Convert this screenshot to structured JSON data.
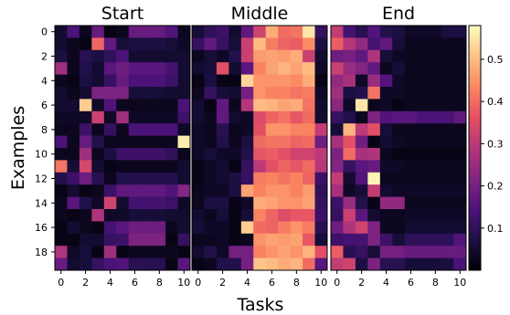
{
  "chart_data": {
    "type": "heatmap",
    "xlabel": "Tasks",
    "ylabel": "Examples",
    "colormap": "magma",
    "vmin": 0.0,
    "vmax": 0.58,
    "x_ticks": [
      0,
      2,
      4,
      6,
      8,
      10
    ],
    "y_ticks": [
      0,
      2,
      4,
      6,
      8,
      10,
      12,
      14,
      16,
      18
    ],
    "colorbar_ticks": [
      0.1,
      0.2,
      0.3,
      0.4,
      0.5
    ],
    "panels": [
      {
        "title": "Start",
        "values": [
          [
            0.05,
            0.14,
            0.03,
            0.18,
            0.02,
            0.03,
            0.18,
            0.18,
            0.18,
            0.15,
            0.03
          ],
          [
            0.05,
            0.03,
            0.02,
            0.39,
            0.17,
            0.06,
            0.07,
            0.07,
            0.07,
            0.06,
            0.04
          ],
          [
            0.07,
            0.03,
            0.09,
            0.07,
            0.1,
            0.14,
            0.05,
            0.05,
            0.05,
            0.05,
            0.05
          ],
          [
            0.26,
            0.03,
            0.08,
            0.05,
            0.16,
            0.19,
            0.16,
            0.16,
            0.16,
            0.13,
            0.05
          ],
          [
            0.03,
            0.02,
            0.07,
            0.05,
            0.11,
            0.18,
            0.14,
            0.14,
            0.14,
            0.12,
            0.05
          ],
          [
            0.05,
            0.03,
            0.05,
            0.21,
            0.21,
            0.21,
            0.06,
            0.06,
            0.06,
            0.05,
            0.05
          ],
          [
            0.05,
            0.05,
            0.52,
            0.04,
            0.15,
            0.03,
            0.03,
            0.03,
            0.03,
            0.03,
            0.14
          ],
          [
            0.04,
            0.04,
            0.04,
            0.32,
            0.04,
            0.26,
            0.04,
            0.04,
            0.04,
            0.04,
            0.12
          ],
          [
            0.03,
            0.03,
            0.12,
            0.03,
            0.11,
            0.03,
            0.14,
            0.14,
            0.14,
            0.14,
            0.04
          ],
          [
            0.14,
            0.03,
            0.18,
            0.08,
            0.03,
            0.03,
            0.03,
            0.03,
            0.03,
            0.03,
            0.56
          ],
          [
            0.03,
            0.03,
            0.26,
            0.03,
            0.07,
            0.12,
            0.12,
            0.12,
            0.12,
            0.1,
            0.03
          ],
          [
            0.41,
            0.06,
            0.34,
            0.05,
            0.02,
            0.03,
            0.03,
            0.03,
            0.03,
            0.03,
            0.05
          ],
          [
            0.08,
            0.12,
            0.19,
            0.09,
            0.03,
            0.08,
            0.08,
            0.08,
            0.08,
            0.08,
            0.05
          ],
          [
            0.02,
            0.05,
            0.02,
            0.03,
            0.12,
            0.17,
            0.17,
            0.17,
            0.17,
            0.15,
            0.22
          ],
          [
            0.03,
            0.16,
            0.08,
            0.04,
            0.33,
            0.05,
            0.13,
            0.13,
            0.13,
            0.12,
            0.04
          ],
          [
            0.03,
            0.02,
            0.03,
            0.28,
            0.04,
            0.04,
            0.06,
            0.06,
            0.06,
            0.05,
            0.05
          ],
          [
            0.02,
            0.05,
            0.03,
            0.02,
            0.13,
            0.16,
            0.19,
            0.19,
            0.19,
            0.03,
            0.05
          ],
          [
            0.02,
            0.02,
            0.05,
            0.05,
            0.11,
            0.12,
            0.21,
            0.21,
            0.21,
            0.02,
            0.11
          ],
          [
            0.28,
            0.04,
            0.06,
            0.02,
            0.26,
            0.02,
            0.03,
            0.03,
            0.03,
            0.03,
            0.02
          ],
          [
            0.18,
            0.05,
            0.06,
            0.11,
            0.14,
            0.15,
            0.09,
            0.09,
            0.09,
            0.02,
            0.16
          ]
        ]
      },
      {
        "title": "Middle",
        "values": [
          [
            0.06,
            0.1,
            0.12,
            0.05,
            0.17,
            0.33,
            0.48,
            0.4,
            0.41,
            0.55,
            0.11
          ],
          [
            0.11,
            0.17,
            0.11,
            0.06,
            0.32,
            0.5,
            0.42,
            0.39,
            0.38,
            0.44,
            0.07
          ],
          [
            0.03,
            0.06,
            0.04,
            0.08,
            0.32,
            0.46,
            0.47,
            0.46,
            0.48,
            0.32,
            0.05
          ],
          [
            0.05,
            0.06,
            0.36,
            0.05,
            0.16,
            0.43,
            0.47,
            0.49,
            0.47,
            0.5,
            0.04
          ],
          [
            0.02,
            0.07,
            0.02,
            0.02,
            0.53,
            0.45,
            0.45,
            0.45,
            0.44,
            0.48,
            0.02
          ],
          [
            0.03,
            0.11,
            0.06,
            0.05,
            0.2,
            0.45,
            0.43,
            0.43,
            0.41,
            0.42,
            0.04
          ],
          [
            0.05,
            0.02,
            0.17,
            0.03,
            0.29,
            0.5,
            0.49,
            0.47,
            0.48,
            0.41,
            0.05
          ],
          [
            0.05,
            0.03,
            0.17,
            0.05,
            0.04,
            0.35,
            0.39,
            0.41,
            0.37,
            0.4,
            0.05
          ],
          [
            0.04,
            0.03,
            0.09,
            0.03,
            0.04,
            0.36,
            0.45,
            0.45,
            0.43,
            0.43,
            0.31
          ],
          [
            0.04,
            0.03,
            0.08,
            0.03,
            0.07,
            0.4,
            0.41,
            0.41,
            0.39,
            0.4,
            0.19
          ],
          [
            0.04,
            0.06,
            0.04,
            0.04,
            0.08,
            0.37,
            0.38,
            0.36,
            0.33,
            0.33,
            0.3
          ],
          [
            0.02,
            0.04,
            0.05,
            0.02,
            0.11,
            0.3,
            0.36,
            0.39,
            0.37,
            0.4,
            0.29
          ],
          [
            0.02,
            0.04,
            0.05,
            0.07,
            0.11,
            0.42,
            0.43,
            0.41,
            0.43,
            0.39,
            0.12
          ],
          [
            0.03,
            0.04,
            0.04,
            0.07,
            0.47,
            0.43,
            0.45,
            0.45,
            0.43,
            0.46,
            0.1
          ],
          [
            0.03,
            0.07,
            0.07,
            0.02,
            0.04,
            0.48,
            0.47,
            0.45,
            0.45,
            0.47,
            0.11
          ],
          [
            0.05,
            0.03,
            0.06,
            0.02,
            0.06,
            0.43,
            0.39,
            0.35,
            0.37,
            0.37,
            0.12
          ],
          [
            0.06,
            0.04,
            0.04,
            0.02,
            0.52,
            0.4,
            0.39,
            0.42,
            0.45,
            0.42,
            0.09
          ],
          [
            0.03,
            0.03,
            0.04,
            0.02,
            0.03,
            0.45,
            0.47,
            0.46,
            0.47,
            0.37,
            0.06
          ],
          [
            0.05,
            0.08,
            0.04,
            0.2,
            0.2,
            0.43,
            0.45,
            0.47,
            0.45,
            0.49,
            0.36
          ],
          [
            0.02,
            0.03,
            0.08,
            0.08,
            0.2,
            0.51,
            0.5,
            0.48,
            0.49,
            0.4,
            0.16
          ]
        ]
      },
      {
        "title": "End",
        "values": [
          [
            0.31,
            0.13,
            0.09,
            0.15,
            0.08,
            0.07,
            0.04,
            0.04,
            0.04,
            0.07,
            0.07
          ],
          [
            0.38,
            0.29,
            0.24,
            0.13,
            0.17,
            0.06,
            0.03,
            0.03,
            0.03,
            0.03,
            0.03
          ],
          [
            0.19,
            0.2,
            0.17,
            0.28,
            0.06,
            0.04,
            0.03,
            0.03,
            0.03,
            0.03,
            0.03
          ],
          [
            0.32,
            0.25,
            0.22,
            0.17,
            0.03,
            0.06,
            0.03,
            0.03,
            0.03,
            0.03,
            0.03
          ],
          [
            0.24,
            0.27,
            0.04,
            0.25,
            0.15,
            0.04,
            0.03,
            0.03,
            0.03,
            0.03,
            0.03
          ],
          [
            0.26,
            0.07,
            0.08,
            0.41,
            0.04,
            0.04,
            0.03,
            0.03,
            0.03,
            0.03,
            0.03
          ],
          [
            0.23,
            0.04,
            0.55,
            0.03,
            0.04,
            0.02,
            0.03,
            0.03,
            0.03,
            0.03,
            0.03
          ],
          [
            0.11,
            0.08,
            0.03,
            0.21,
            0.15,
            0.16,
            0.16,
            0.14,
            0.14,
            0.14,
            0.17
          ],
          [
            0.06,
            0.49,
            0.3,
            0.36,
            0.06,
            0.03,
            0.03,
            0.03,
            0.03,
            0.03,
            0.03
          ],
          [
            0.27,
            0.36,
            0.19,
            0.02,
            0.05,
            0.04,
            0.03,
            0.03,
            0.03,
            0.03,
            0.03
          ],
          [
            0.21,
            0.4,
            0.27,
            0.28,
            0.03,
            0.02,
            0.02,
            0.02,
            0.02,
            0.02,
            0.02
          ],
          [
            0.22,
            0.11,
            0.16,
            0.18,
            0.04,
            0.04,
            0.03,
            0.03,
            0.03,
            0.03,
            0.03
          ],
          [
            0.31,
            0.05,
            0.15,
            0.57,
            0.03,
            0.03,
            0.03,
            0.03,
            0.03,
            0.03,
            0.03
          ],
          [
            0.27,
            0.04,
            0.06,
            0.31,
            0.05,
            0.04,
            0.04,
            0.04,
            0.04,
            0.04,
            0.04
          ],
          [
            0.12,
            0.25,
            0.08,
            0.02,
            0.24,
            0.24,
            0.03,
            0.03,
            0.03,
            0.03,
            0.03
          ],
          [
            0.11,
            0.32,
            0.16,
            0.05,
            0.03,
            0.03,
            0.04,
            0.04,
            0.04,
            0.04,
            0.04
          ],
          [
            0.19,
            0.28,
            0.33,
            0.21,
            0.03,
            0.03,
            0.05,
            0.05,
            0.05,
            0.05,
            0.05
          ],
          [
            0.12,
            0.13,
            0.13,
            0.21,
            0.12,
            0.06,
            0.1,
            0.1,
            0.1,
            0.1,
            0.15
          ],
          [
            0.38,
            0.09,
            0.11,
            0.06,
            0.2,
            0.2,
            0.18,
            0.18,
            0.18,
            0.18,
            0.18
          ],
          [
            0.31,
            0.33,
            0.07,
            0.21,
            0.09,
            0.09,
            0.06,
            0.06,
            0.06,
            0.07,
            0.14
          ]
        ]
      }
    ]
  }
}
